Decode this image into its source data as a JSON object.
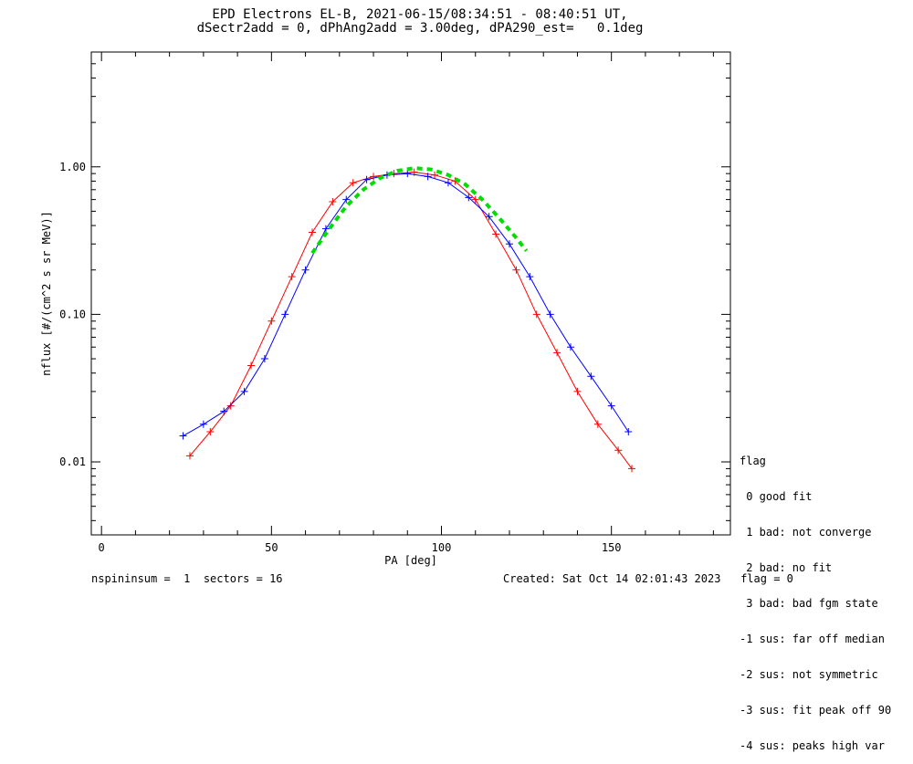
{
  "title_lines": [
    "EPD Electrons EL-B, 2021-06-15/08:34:51 - 08:40:51 UT,",
    "dSectr2add = 0, dPhAng2add = 3.00deg, dPA290_est=   0.1deg"
  ],
  "footer": {
    "left": "nspininsum =  1  sectors = 16",
    "right": "Created: Sat Oct 14 02:01:43 2023   flag = 0"
  },
  "legend": {
    "heading": "flag",
    "items": [
      " 0 good fit",
      " 1 bad: not converge",
      " 2 bad: no fit",
      " 3 bad: bad fgm state",
      "-1 sus: far off median",
      "-2 sus: not symmetric",
      "-3 sus: fit peak off 90",
      "-4 sus: peaks high var"
    ]
  },
  "colors": {
    "red": "#ff0000",
    "blue": "#0000ff",
    "fit": "#00dd00",
    "axis": "#000000"
  },
  "chart_data": {
    "type": "line",
    "xlabel": "PA [deg]",
    "ylabel": "nflux [#/(cm^2 s sr MeV)]",
    "xlim": [
      -3,
      185
    ],
    "ylim": [
      0.0032,
      6.0
    ],
    "yscale": "log",
    "xticks": [
      0,
      50,
      100,
      150
    ],
    "yticks": [
      0.01,
      0.1,
      1.0
    ],
    "ytick_labels": [
      "0.01",
      "0.10",
      "1.00"
    ],
    "series": [
      {
        "color": "red",
        "style": "line+cross",
        "x": [
          26,
          32,
          38,
          44,
          50,
          56,
          62,
          68,
          74,
          80,
          86,
          92,
          98,
          104,
          110,
          116,
          122,
          128,
          134,
          140,
          146,
          152,
          156
        ],
        "y": [
          0.011,
          0.016,
          0.024,
          0.045,
          0.09,
          0.18,
          0.36,
          0.58,
          0.78,
          0.86,
          0.9,
          0.92,
          0.88,
          0.8,
          0.6,
          0.35,
          0.2,
          0.1,
          0.055,
          0.03,
          0.018,
          0.012,
          0.009
        ]
      },
      {
        "color": "blue",
        "style": "line+cross",
        "x": [
          24,
          30,
          36,
          42,
          48,
          54,
          60,
          66,
          72,
          78,
          84,
          90,
          96,
          102,
          108,
          114,
          120,
          126,
          132,
          138,
          144,
          150,
          155
        ],
        "y": [
          0.015,
          0.018,
          0.022,
          0.03,
          0.05,
          0.1,
          0.2,
          0.38,
          0.6,
          0.82,
          0.88,
          0.9,
          0.86,
          0.78,
          0.62,
          0.46,
          0.3,
          0.18,
          0.1,
          0.06,
          0.038,
          0.024,
          0.016
        ]
      },
      {
        "color": "fit",
        "style": "dashed",
        "x": [
          62,
          67,
          72,
          77,
          82,
          87,
          92,
          97,
          102,
          107,
          112,
          117,
          122,
          125
        ],
        "y": [
          0.26,
          0.38,
          0.54,
          0.7,
          0.84,
          0.94,
          0.98,
          0.96,
          0.88,
          0.76,
          0.6,
          0.45,
          0.33,
          0.27
        ]
      }
    ]
  }
}
